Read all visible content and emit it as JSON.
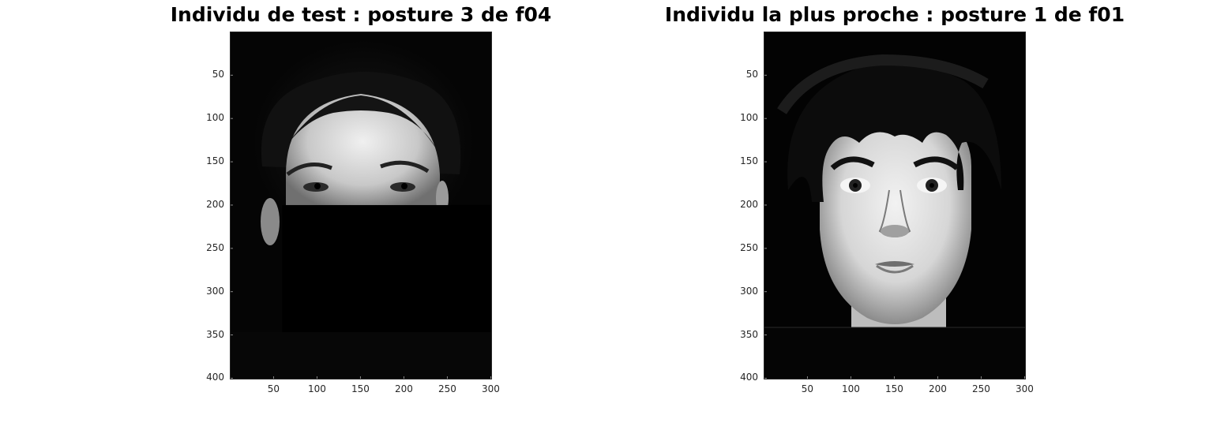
{
  "chart_data": [
    {
      "type": "image",
      "title": "Individu de test : posture 3 de f04",
      "image_content": "grayscale face photo, lower half masked by black rectangle",
      "xlim": [
        0.5,
        300.5
      ],
      "ylim": [
        0.5,
        400.5
      ],
      "y_reversed": true,
      "xticks": [
        50,
        100,
        150,
        200,
        250,
        300
      ],
      "yticks": [
        50,
        100,
        150,
        200,
        250,
        300,
        350,
        400
      ],
      "xticklabels": [
        "50",
        "100",
        "150",
        "200",
        "250",
        "300"
      ],
      "yticklabels": [
        "50",
        "100",
        "150",
        "200",
        "250",
        "300",
        "350",
        "400"
      ],
      "colormap": "gray",
      "masked_region": {
        "x": [
          60,
          300
        ],
        "y": [
          200,
          350
        ]
      }
    },
    {
      "type": "image",
      "title": "Individu la plus proche : posture 1 de f01",
      "image_content": "grayscale face photo of a short-haired woman",
      "xlim": [
        0.5,
        300.5
      ],
      "ylim": [
        0.5,
        400.5
      ],
      "y_reversed": true,
      "xticks": [
        50,
        100,
        150,
        200,
        250,
        300
      ],
      "yticks": [
        50,
        100,
        150,
        200,
        250,
        300,
        350,
        400
      ],
      "xticklabels": [
        "50",
        "100",
        "150",
        "200",
        "250",
        "300"
      ],
      "yticklabels": [
        "50",
        "100",
        "150",
        "200",
        "250",
        "300",
        "350",
        "400"
      ],
      "colormap": "gray"
    }
  ]
}
